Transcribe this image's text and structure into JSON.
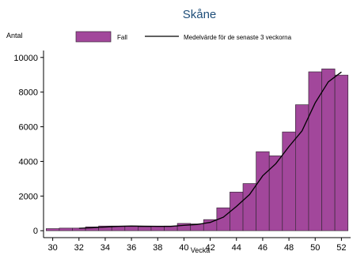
{
  "chart_data": {
    "type": "bar",
    "title": "Skåne",
    "xlabel": "Vecka",
    "ylabel": "Antal",
    "x": [
      30,
      31,
      32,
      33,
      34,
      35,
      36,
      37,
      38,
      39,
      40,
      41,
      42,
      43,
      44,
      45,
      46,
      47,
      48,
      49,
      50,
      51,
      52
    ],
    "series": [
      {
        "name": "Fall",
        "kind": "bar",
        "color": "#a2479b",
        "values": [
          120,
          150,
          150,
          220,
          270,
          270,
          270,
          230,
          250,
          270,
          420,
          390,
          640,
          1320,
          2230,
          2720,
          4560,
          4320,
          5700,
          7270,
          9170,
          9340,
          8980
        ]
      },
      {
        "name": "Medelvärde för de senaste 3 veckorna",
        "kind": "line",
        "color": "#000000",
        "values": [
          null,
          null,
          140,
          170,
          210,
          250,
          270,
          260,
          250,
          250,
          310,
          360,
          480,
          780,
          1400,
          2090,
          3170,
          3870,
          4860,
          5760,
          7380,
          8590,
          9160
        ]
      }
    ],
    "xticks": [
      30,
      32,
      34,
      36,
      38,
      40,
      42,
      44,
      46,
      48,
      50,
      52
    ],
    "yticks": [
      0,
      2000,
      4000,
      6000,
      8000,
      10000
    ],
    "xlim": [
      29.3,
      52.7
    ],
    "ylim": [
      -400,
      10400
    ],
    "grid": false,
    "legend_position": "top"
  },
  "colors": {
    "bar_fill": "#a2479b",
    "bar_stroke": "#3a2a3a",
    "line": "#000000",
    "title": "#1f4e79"
  }
}
